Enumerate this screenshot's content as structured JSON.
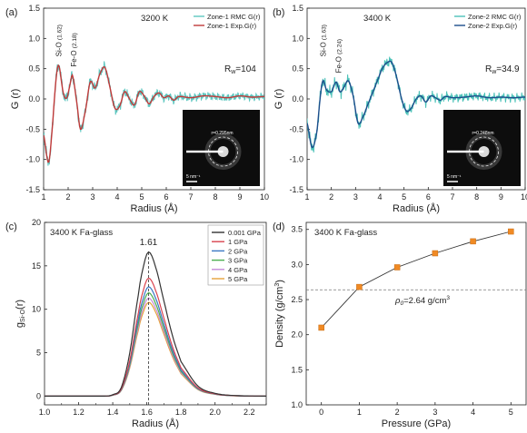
{
  "chart_data": [
    {
      "panel": "(a)",
      "type": "line",
      "title": "3200 K",
      "xlabel": "Radius (Å)",
      "ylabel": "G (r)",
      "xlim": [
        1,
        10
      ],
      "ylim": [
        -1.5,
        1.5
      ],
      "xticks": [
        "1",
        "2",
        "3",
        "4",
        "5",
        "6",
        "7",
        "8",
        "9",
        "10"
      ],
      "yticks": [
        "-1.5",
        "-1.0",
        "-0.5",
        "0.0",
        "0.5",
        "1.0",
        "1.5"
      ],
      "legend_position": "top-right",
      "rw_label": "R",
      "rw_sub": "w",
      "rw_value": "=104",
      "peak_labels": [
        {
          "name": "Si-O",
          "value": "(1.62)"
        },
        {
          "name": "Fe-O",
          "value": "(2.18)"
        }
      ],
      "inset": {
        "ring_label": "r=0.295nm",
        "scale_label": "5 nm⁻¹"
      },
      "series": [
        {
          "name": "Zone-1 RMC G(r)",
          "color": "#5ec7c0",
          "noisy": true,
          "x": [
            1.0,
            1.2,
            1.35,
            1.5,
            1.62,
            1.8,
            1.95,
            2.1,
            2.18,
            2.35,
            2.5,
            2.7,
            2.9,
            3.1,
            3.3,
            3.5,
            3.7,
            3.9,
            4.1,
            4.3,
            4.5,
            4.7,
            4.9,
            5.1,
            5.3,
            5.5,
            5.7,
            5.9,
            6.1,
            6.3,
            6.5,
            7.0,
            7.5,
            8.0,
            8.5,
            9.0,
            9.5,
            10.0
          ],
          "y": [
            -0.6,
            -1.05,
            -0.5,
            0.3,
            0.55,
            0.1,
            0.02,
            0.28,
            0.38,
            -0.05,
            -0.5,
            -0.2,
            0.28,
            0.18,
            0.42,
            0.52,
            0.2,
            -0.15,
            -0.12,
            0.12,
            0.0,
            -0.1,
            0.12,
            0.05,
            -0.08,
            0.04,
            0.1,
            0.02,
            0.05,
            -0.02,
            0.04,
            0.02,
            0.05,
            0.04,
            0.02,
            0.05,
            0.03,
            0.04
          ]
        },
        {
          "name": "Zone-1 Exp.G(r)",
          "color": "#c03a3a",
          "noisy": false,
          "x": [
            1.0,
            1.2,
            1.35,
            1.5,
            1.62,
            1.8,
            1.95,
            2.1,
            2.18,
            2.35,
            2.5,
            2.7,
            2.9,
            3.1,
            3.3,
            3.5,
            3.7,
            3.9,
            4.1,
            4.3,
            4.5,
            4.7,
            4.9,
            5.1,
            5.3,
            5.5,
            5.7,
            5.9,
            6.1,
            6.3,
            6.5,
            7.0,
            7.5,
            8.0,
            8.5,
            9.0,
            9.5,
            10.0
          ],
          "y": [
            -0.6,
            -1.05,
            -0.5,
            0.3,
            0.55,
            0.1,
            0.02,
            0.28,
            0.38,
            -0.05,
            -0.5,
            -0.2,
            0.28,
            0.18,
            0.42,
            0.52,
            0.2,
            -0.15,
            -0.12,
            0.12,
            0.0,
            -0.1,
            0.12,
            0.05,
            -0.08,
            0.04,
            0.1,
            0.02,
            0.05,
            -0.02,
            0.04,
            0.02,
            0.05,
            0.04,
            0.02,
            0.05,
            0.03,
            0.04
          ]
        }
      ]
    },
    {
      "panel": "(b)",
      "type": "line",
      "title": "3400 K",
      "xlabel": "Radius (Å)",
      "ylabel": "G (r)",
      "xlim": [
        1,
        10
      ],
      "ylim": [
        -1.5,
        1.5
      ],
      "xticks": [
        "1",
        "2",
        "3",
        "4",
        "5",
        "6",
        "7",
        "8",
        "9",
        "10"
      ],
      "yticks": [
        "-1.5",
        "-1.0",
        "-0.5",
        "0.0",
        "0.5",
        "1.0",
        "1.5"
      ],
      "legend_position": "top-right",
      "rw_label": "R",
      "rw_sub": "w",
      "rw_value": "=34.9",
      "peak_labels": [
        {
          "name": "Si-O",
          "value": "(1.63)"
        },
        {
          "name": "Fe-O",
          "value": "(2.24)"
        }
      ],
      "inset": {
        "ring_label": "r=0.248nm",
        "scale_label": "5 nm⁻¹"
      },
      "series": [
        {
          "name": "Zone-2 RMC G(r)",
          "color": "#4cc2b8",
          "noisy": true,
          "x": [
            1.0,
            1.2,
            1.4,
            1.55,
            1.65,
            1.8,
            2.0,
            2.2,
            2.35,
            2.5,
            2.7,
            2.9,
            3.1,
            3.3,
            3.5,
            3.7,
            3.9,
            4.1,
            4.3,
            4.5,
            4.7,
            4.9,
            5.1,
            5.3,
            5.5,
            5.7,
            5.9,
            6.1,
            6.3,
            6.5,
            6.7,
            7.0,
            7.5,
            8.0,
            8.5,
            9.0,
            9.5,
            10.0
          ],
          "y": [
            -0.4,
            -0.8,
            -0.55,
            0.05,
            0.3,
            0.15,
            0.12,
            0.28,
            0.12,
            0.18,
            0.3,
            0.05,
            -0.4,
            -0.3,
            -0.1,
            0.1,
            0.3,
            0.5,
            0.6,
            0.6,
            0.35,
            0.0,
            -0.2,
            -0.15,
            0.0,
            0.05,
            -0.05,
            0.05,
            0.02,
            -0.02,
            0.04,
            0.02,
            0.03,
            0.05,
            0.02,
            0.03,
            0.02,
            0.03
          ]
        },
        {
          "name": "Zone-2 Exp.G(r)",
          "color": "#1d4e8c",
          "noisy": false,
          "x": [
            1.0,
            1.2,
            1.4,
            1.55,
            1.65,
            1.8,
            2.0,
            2.2,
            2.35,
            2.5,
            2.7,
            2.9,
            3.1,
            3.3,
            3.5,
            3.7,
            3.9,
            4.1,
            4.3,
            4.5,
            4.7,
            4.9,
            5.1,
            5.3,
            5.5,
            5.7,
            5.9,
            6.1,
            6.3,
            6.5,
            6.7,
            7.0,
            7.5,
            8.0,
            8.5,
            9.0,
            9.5,
            10.0
          ],
          "y": [
            -0.4,
            -0.8,
            -0.55,
            0.05,
            0.3,
            0.15,
            0.12,
            0.28,
            0.12,
            0.18,
            0.3,
            0.05,
            -0.4,
            -0.3,
            -0.1,
            0.1,
            0.3,
            0.5,
            0.6,
            0.6,
            0.35,
            0.0,
            -0.2,
            -0.15,
            0.0,
            0.05,
            -0.05,
            0.05,
            0.02,
            -0.02,
            0.04,
            0.02,
            0.03,
            0.05,
            0.02,
            0.03,
            0.02,
            0.03
          ]
        }
      ]
    },
    {
      "panel": "(c)",
      "type": "line",
      "title": "3400 K Fa-glass",
      "xlabel": "Radius (Å)",
      "ylabel_main": "g",
      "ylabel_sub": "Si-O",
      "ylabel_tail": "(r)",
      "xlim": [
        1.0,
        2.3
      ],
      "ylim": [
        -1,
        20
      ],
      "xticks": [
        "1.0",
        "1.2",
        "1.4",
        "1.6",
        "1.8",
        "2.0",
        "2.2"
      ],
      "yticks": [
        "0",
        "5",
        "10",
        "15",
        "20"
      ],
      "legend_position": "top-right",
      "peak_marker": {
        "x": 1.61,
        "label": "1.61"
      },
      "shape_x": [
        1.0,
        1.35,
        1.4,
        1.45,
        1.5,
        1.55,
        1.58,
        1.61,
        1.65,
        1.7,
        1.75,
        1.8,
        1.9,
        2.0,
        2.1,
        2.3
      ],
      "shape_y": [
        0,
        0,
        0.01,
        0.06,
        0.3,
        0.7,
        0.9,
        1.0,
        0.9,
        0.66,
        0.42,
        0.24,
        0.07,
        0.02,
        0.005,
        0
      ],
      "series": [
        {
          "name": "0.001 GPa",
          "color": "#333333",
          "peak": 16.6
        },
        {
          "name": "1 GPa",
          "color": "#d9434f",
          "peak": 13.6
        },
        {
          "name": "2 GPa",
          "color": "#3b78c4",
          "peak": 12.6
        },
        {
          "name": "3 GPa",
          "color": "#4caf50",
          "peak": 11.9
        },
        {
          "name": "4 GPa",
          "color": "#c58bd8",
          "peak": 11.3
        },
        {
          "name": "5 GPa",
          "color": "#e6a23c",
          "peak": 10.8
        }
      ]
    },
    {
      "panel": "(d)",
      "type": "scatter",
      "title": "3400 K Fa-glass",
      "xlabel": "Pressure (GPa)",
      "ylabel": "Density (g/cm",
      "ylabel_sup": "3",
      "ylabel_tail": ")",
      "xlim": [
        -0.4,
        5.4
      ],
      "ylim": [
        1.0,
        3.6
      ],
      "xticks": [
        "0",
        "1",
        "2",
        "3",
        "4",
        "5"
      ],
      "yticks": [
        "1.0",
        "1.5",
        "2.0",
        "2.5",
        "3.0",
        "3.5"
      ],
      "reference": {
        "y": 2.64,
        "symbol": "ρ",
        "sub": "0",
        "value": "=2.64 g/cm",
        "sup": "3"
      },
      "series": [
        {
          "name": "density",
          "color": "#f08a24",
          "x": [
            0,
            1,
            2,
            3,
            4,
            5
          ],
          "y": [
            2.1,
            2.68,
            2.96,
            3.16,
            3.33,
            3.47
          ]
        }
      ]
    }
  ]
}
